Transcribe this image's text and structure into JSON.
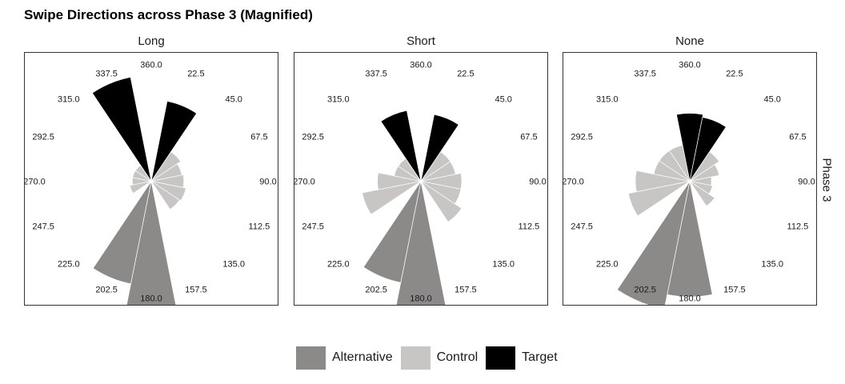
{
  "chart_data": {
    "type": "rose",
    "title": "Swipe Directions across Phase 3 (Magnified)",
    "row_strip": "Phase 3",
    "facets": [
      "Long",
      "Short",
      "None"
    ],
    "direction_ticks": [
      "360.0",
      "22.5",
      "45.0",
      "67.5",
      "90.0",
      "112.5",
      "135.0",
      "157.5",
      "180.0",
      "202.5",
      "225.0",
      "247.5",
      "270.0",
      "292.5",
      "315.0",
      "337.5"
    ],
    "bin_width_degrees": 22.5,
    "bin_centers": [
      0,
      22.5,
      45,
      67.5,
      90,
      112.5,
      135,
      157.5,
      180,
      202.5,
      225,
      247.5,
      270,
      292.5,
      315,
      337.5
    ],
    "series": [
      {
        "name": "Alternative",
        "color": "#8c8989",
        "values": {
          "Long": [
            0,
            0,
            0,
            0,
            0,
            0,
            0,
            0,
            0.93,
            0.77,
            0,
            0,
            0,
            0,
            0,
            0
          ],
          "Short": [
            0,
            0,
            0,
            0,
            0,
            0,
            0,
            0,
            1.0,
            0.76,
            0,
            0,
            0,
            0,
            0,
            0
          ],
          "None": [
            0,
            0,
            0,
            0,
            0,
            0,
            0,
            0,
            0.85,
            0.96,
            0,
            0,
            0,
            0,
            0,
            0
          ]
        }
      },
      {
        "name": "Control",
        "color": "#c7c6c4",
        "values": {
          "Long": [
            0,
            0,
            0.26,
            0.23,
            0.24,
            0.26,
            0.25,
            0,
            0,
            0,
            0,
            0.16,
            0.14,
            0.14,
            0.14,
            0.2
          ],
          "Short": [
            0,
            0,
            0.26,
            0.26,
            0.3,
            0.3,
            0.36,
            0,
            0,
            0,
            0,
            0.44,
            0.32,
            0.2,
            0.2,
            0.5
          ],
          "None": [
            0,
            0,
            0.26,
            0.22,
            0.16,
            0.17,
            0.22,
            0,
            0,
            0,
            0,
            0.46,
            0.4,
            0.27,
            0.27,
            0.27
          ]
        }
      },
      {
        "name": "Target",
        "color": "#000000",
        "values": {
          "Long": [
            0,
            0.6,
            0,
            0,
            0,
            0,
            0,
            0,
            0,
            0,
            0,
            0,
            0,
            0,
            0,
            0.78
          ],
          "Short": [
            0,
            0.5,
            0,
            0,
            0,
            0,
            0,
            0,
            0,
            0,
            0,
            0,
            0,
            0,
            0,
            0.53
          ],
          "None": [
            0.5,
            0.48,
            0,
            0,
            0,
            0,
            0,
            0,
            0,
            0,
            0,
            0,
            0,
            0,
            0,
            0
          ]
        }
      }
    ],
    "legend_position": "bottom",
    "grid": false
  }
}
